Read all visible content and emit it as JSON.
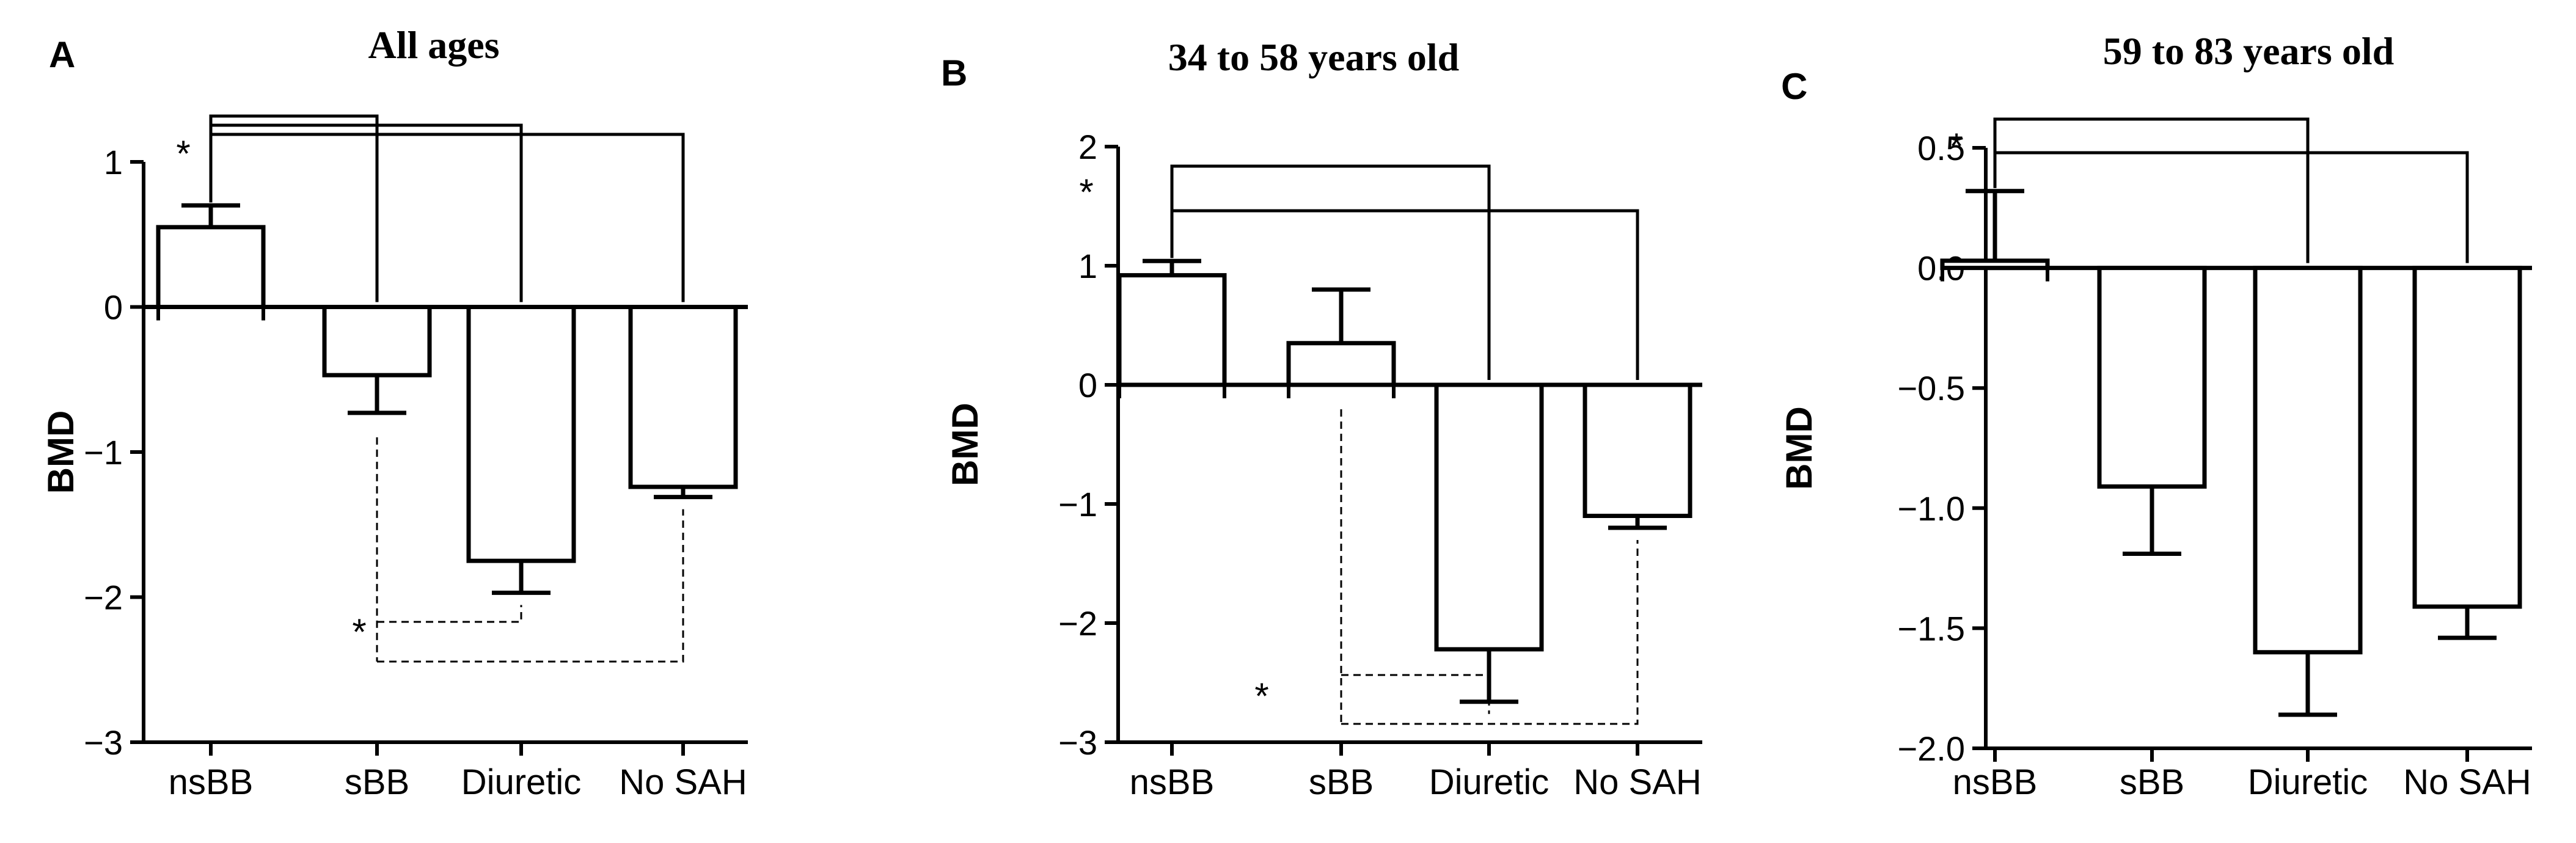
{
  "chart_data": [
    {
      "panel": "A",
      "type": "bar",
      "title": "All ages",
      "ylabel": "BMD",
      "ylim": [
        -3,
        1
      ],
      "yticks": [
        -3,
        -2,
        -1,
        0,
        1
      ],
      "ytick_labels": [
        "−3",
        "−2",
        "−1",
        "0",
        "1"
      ],
      "categories": [
        "nsBB",
        "sBB",
        "Diuretic",
        "No SAH"
      ],
      "values": [
        0.55,
        -0.47,
        -1.75,
        -1.24
      ],
      "errors": [
        0.15,
        0.26,
        0.22,
        0.07
      ],
      "significance_marker": "*",
      "solid_brackets_from": "nsBB",
      "solid_brackets_to": [
        "sBB",
        "Diuretic",
        "No SAH"
      ],
      "dashed_brackets_from": "sBB",
      "dashed_brackets_to": [
        "Diuretic",
        "No SAH"
      ]
    },
    {
      "panel": "B",
      "type": "bar",
      "title": "34 to 58 years old",
      "ylabel": "BMD",
      "ylim": [
        -3,
        2
      ],
      "yticks": [
        -3,
        -2,
        -1,
        0,
        1,
        2
      ],
      "ytick_labels": [
        "−3",
        "−2",
        "−1",
        "0",
        "1",
        "2"
      ],
      "categories": [
        "nsBB",
        "sBB",
        "Diuretic",
        "No SAH"
      ],
      "values": [
        0.92,
        0.35,
        -2.22,
        -1.1
      ],
      "errors": [
        0.12,
        0.45,
        0.44,
        0.1
      ],
      "significance_marker": "*",
      "solid_brackets_from": "nsBB",
      "solid_brackets_to": [
        "Diuretic",
        "No SAH"
      ],
      "dashed_brackets_from": "sBB",
      "dashed_brackets_to": [
        "Diuretic",
        "No SAH"
      ]
    },
    {
      "panel": "C",
      "type": "bar",
      "title": "59 to 83 years old",
      "ylabel": "BMD",
      "ylim": [
        -2.0,
        0.5
      ],
      "yticks": [
        -2.0,
        -1.5,
        -1.0,
        -0.5,
        0.0,
        0.5
      ],
      "ytick_labels": [
        "−2.0",
        "−1.5",
        "−1.0",
        "−0.5",
        "0.0",
        "0.5"
      ],
      "categories": [
        "nsBB",
        "sBB",
        "Diuretic",
        "No SAH"
      ],
      "values": [
        0.03,
        -0.91,
        -1.6,
        -1.41
      ],
      "errors": [
        0.29,
        0.28,
        0.26,
        0.13
      ],
      "significance_marker": "*",
      "solid_brackets_from": "nsBB",
      "solid_brackets_to": [
        "Diuretic",
        "No SAH"
      ],
      "dashed_brackets_from": null,
      "dashed_brackets_to": []
    }
  ]
}
